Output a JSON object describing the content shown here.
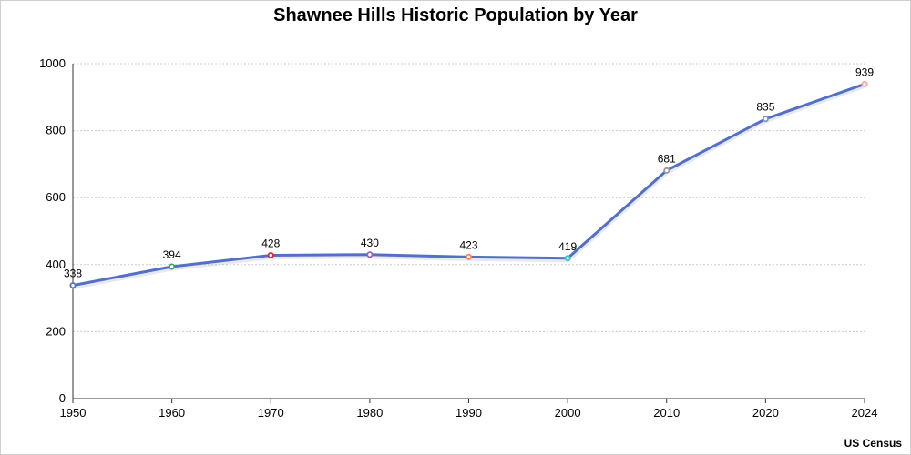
{
  "chart_data": {
    "type": "line",
    "title": "Shawnee Hills Historic Population by Year",
    "source": "US Census",
    "xlabel": "",
    "ylabel": "",
    "x": [
      1950,
      1960,
      1970,
      1980,
      1990,
      2000,
      2010,
      2020,
      2024
    ],
    "x_tick_labels": [
      "1950",
      "1960",
      "1970",
      "1980",
      "1990",
      "2000",
      "2010",
      "2020",
      "2024"
    ],
    "x_spacing": "categorical-equal",
    "y_ticks": [
      0,
      200,
      400,
      600,
      800,
      1000
    ],
    "ylim": [
      0,
      1000
    ],
    "grid": "horizontal dotted",
    "series": [
      {
        "values": [
          338,
          394,
          428,
          430,
          423,
          419,
          681,
          835,
          939
        ]
      }
    ],
    "data_labels": [
      "338",
      "394",
      "428",
      "430",
      "423",
      "419",
      "681",
      "835",
      "939"
    ],
    "line_color": "#5470c6",
    "marker_colors": [
      "#5470c6",
      "#3ba272",
      "#ee2222",
      "#9a60b4",
      "#fc8452",
      "#2ec7c9",
      "#999999",
      "#7a9cb8",
      "#f4a0a0"
    ]
  }
}
